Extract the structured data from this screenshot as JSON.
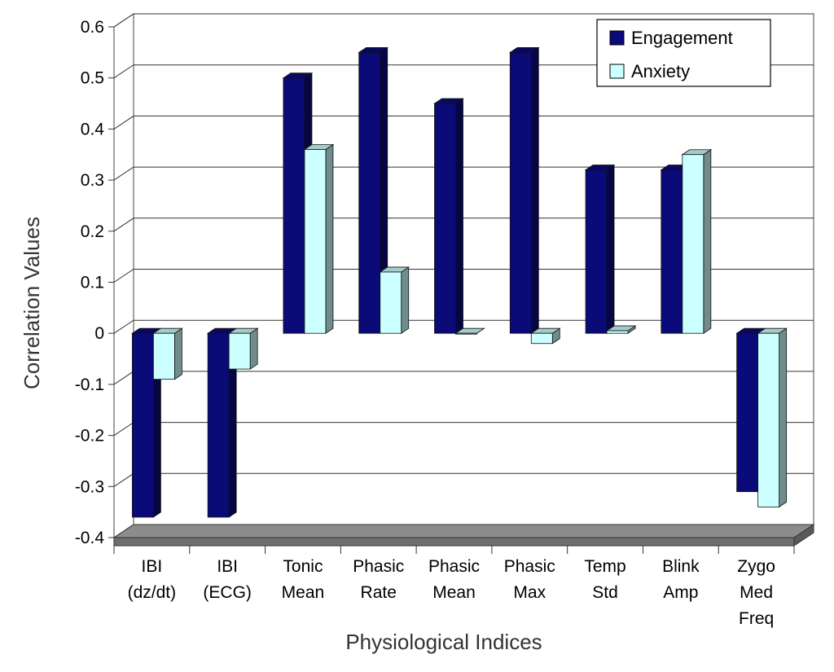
{
  "chart_data": {
    "type": "bar",
    "xlabel": "Physiological Indices",
    "ylabel": "Correlation Values",
    "ylim": [
      -0.4,
      0.6
    ],
    "yticks": [
      "0.6",
      "0.5",
      "0.4",
      "0.3",
      "0.2",
      "0.1",
      "0",
      "-0.1",
      "-0.2",
      "-0.3",
      "-0.4"
    ],
    "grid": true,
    "legend_position": "top-right",
    "categories": [
      [
        "IBI",
        "(dz/dt)"
      ],
      [
        "IBI",
        "(ECG)"
      ],
      [
        "Tonic",
        "Mean"
      ],
      [
        "Phasic",
        "Rate"
      ],
      [
        "Phasic",
        "Mean"
      ],
      [
        "Phasic",
        "Max"
      ],
      [
        "Temp",
        "Std"
      ],
      [
        "Blink",
        "Amp"
      ],
      [
        "Zygo",
        "Med",
        "Freq"
      ]
    ],
    "series": [
      {
        "name": "Engagement",
        "color": "#0a0a78",
        "values": [
          -0.36,
          -0.36,
          0.5,
          0.55,
          0.45,
          0.55,
          0.32,
          0.32,
          -0.31
        ]
      },
      {
        "name": "Anxiety",
        "color": "#ccffff",
        "values": [
          -0.09,
          -0.07,
          0.36,
          0.12,
          0.0,
          -0.02,
          0.005,
          0.35,
          -0.34
        ]
      }
    ]
  }
}
